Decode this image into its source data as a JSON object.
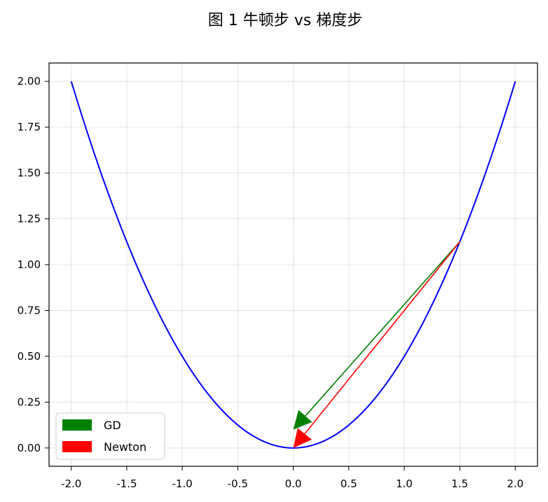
{
  "chart_data": {
    "type": "line",
    "title": "图 1    牛顿步 vs 梯度步",
    "xlabel": "",
    "ylabel": "",
    "xlim": [
      -2.2,
      2.2
    ],
    "ylim": [
      -0.1,
      2.1
    ],
    "grid": true,
    "legend_position": "lower-left",
    "x_ticks": [
      "-2.0",
      "-1.5",
      "-1.0",
      "-0.5",
      "0.0",
      "0.5",
      "1.0",
      "1.5",
      "2.0"
    ],
    "y_ticks": [
      "0.00",
      "0.25",
      "0.50",
      "0.75",
      "1.00",
      "1.25",
      "1.50",
      "1.75",
      "2.00"
    ],
    "curve": {
      "function": "y = 0.5 * x^2",
      "x_range": [
        -2.0,
        2.0
      ],
      "color": "#0000ff"
    },
    "arrows": [
      {
        "name": "GD",
        "from": [
          1.5,
          1.125
        ],
        "to": [
          0.0,
          0.1
        ],
        "color": "#008000"
      },
      {
        "name": "Newton",
        "from": [
          1.5,
          1.125
        ],
        "to": [
          0.0,
          0.0
        ],
        "color": "#ff0000"
      }
    ],
    "legend": [
      {
        "label": "GD",
        "color": "#008000"
      },
      {
        "label": "Newton",
        "color": "#ff0000"
      }
    ]
  }
}
